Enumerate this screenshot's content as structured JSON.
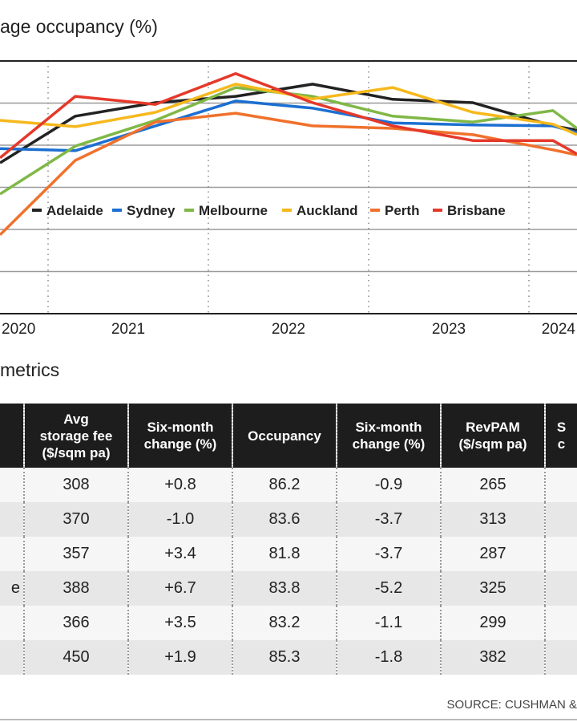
{
  "chart_data": {
    "type": "line",
    "title": "age occupancy (%)",
    "xlabel": "",
    "ylabel": "",
    "x_tick_labels": [
      "2020",
      "2021",
      "2022",
      "2023",
      "2024"
    ],
    "x": [
      2020.7,
      2021.17,
      2021.67,
      2022.17,
      2022.65,
      2023.15,
      2023.65,
      2024.15,
      2024.3
    ],
    "xlim": [
      2020.7,
      2024.3
    ],
    "ylim": [
      0,
      6
    ],
    "y_note_unlabeled": true,
    "grid": {
      "horizontal": true,
      "vertical_dotted": true
    },
    "legend_placement": "middle",
    "series": [
      {
        "name": "Adelaide",
        "color": "#222222",
        "values": [
          3.58,
          4.69,
          5.01,
          5.16,
          5.45,
          5.09,
          5.01,
          4.46,
          4.36
        ]
      },
      {
        "name": "Sydney",
        "color": "#1b6fd1",
        "values": [
          3.92,
          3.87,
          4.46,
          5.05,
          4.88,
          4.53,
          4.48,
          4.46,
          4.3
        ]
      },
      {
        "name": "Melbourne",
        "color": "#80b846",
        "values": [
          2.84,
          3.98,
          4.59,
          5.37,
          5.16,
          4.69,
          4.55,
          4.82,
          4.4
        ]
      },
      {
        "name": "Auckland",
        "color": "#f6b81c",
        "values": [
          4.59,
          4.44,
          4.78,
          5.45,
          5.1,
          5.37,
          4.78,
          4.5,
          4.25
        ]
      },
      {
        "name": "Perth",
        "color": "#f0712c",
        "values": [
          1.87,
          3.64,
          4.55,
          4.76,
          4.46,
          4.4,
          4.25,
          3.89,
          3.77
        ]
      },
      {
        "name": "Brisbane",
        "color": "#e5392b",
        "values": [
          3.7,
          5.16,
          4.97,
          5.7,
          5.01,
          4.46,
          4.11,
          4.11,
          3.79
        ]
      }
    ]
  },
  "table": {
    "title": "metrics",
    "headers": [
      "",
      "Avg\nstorage fee\n($/sqm pa)",
      "Six-month\nchange (%)",
      "Occupancy",
      "Six-month\nchange (%)",
      "RevPAM\n($/sqm pa)",
      "S\nc"
    ],
    "rows": [
      [
        "",
        "308",
        "+0.8",
        "86.2",
        "-0.9",
        "265",
        ""
      ],
      [
        "",
        "370",
        "-1.0",
        "83.6",
        "-3.7",
        "313",
        ""
      ],
      [
        "",
        "357",
        "+3.4",
        "81.8",
        "-3.7",
        "287",
        ""
      ],
      [
        "e",
        "388",
        "+6.7",
        "83.8",
        "-5.2",
        "325",
        ""
      ],
      [
        "",
        "366",
        "+3.5",
        "83.2",
        "-1.1",
        "299",
        ""
      ],
      [
        "",
        "450",
        "+1.9",
        "85.3",
        "-1.8",
        "382",
        ""
      ]
    ]
  },
  "source": "SOURCE: CUSHMAN &"
}
